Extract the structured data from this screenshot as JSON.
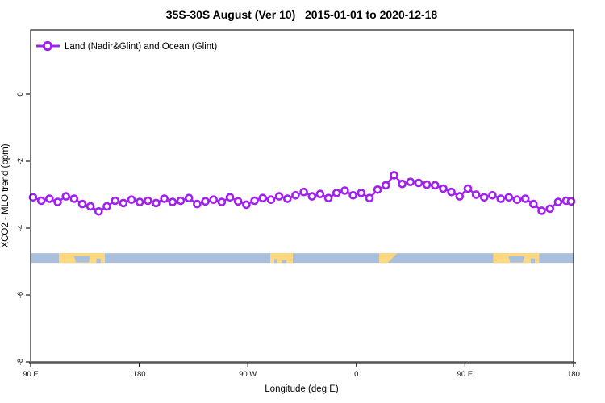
{
  "title": "35S-30S August (Ver 10)   2015-01-01 to 2020-12-18",
  "legend": {
    "label": "Land (Nadir&Glint) and Ocean (Glint)"
  },
  "colors": {
    "series": "#A020F0",
    "marker_fill": "#FFFFFF",
    "ocean": "#A9BFDC",
    "land": "#FDD87E",
    "axis": "#1a1a1a"
  },
  "chart_data": {
    "type": "line",
    "title": "35S-30S August (Ver 10)   2015-01-01 to 2020-12-18",
    "xlabel": "Longitude (deg E)",
    "ylabel": "XCO2 - MLO trend (ppm)",
    "grid": false,
    "legend_position": "topleft",
    "x_axis": {
      "note": "display axis runs 90E eastward wrapping to 180 (450 deg total)",
      "range_display_deg": [
        90,
        540
      ],
      "ticks": [
        {
          "deg": 90,
          "label": "90 E"
        },
        {
          "deg": 180,
          "label": "180"
        },
        {
          "deg": 270,
          "label": "90 W"
        },
        {
          "deg": 360,
          "label": "0"
        },
        {
          "deg": 450,
          "label": "90 E"
        },
        {
          "deg": 540,
          "label": "180"
        }
      ]
    },
    "y_axis": {
      "range": [
        -8.1,
        1.93
      ],
      "ticks": [
        {
          "val": 0,
          "label": "0"
        },
        {
          "val": -2,
          "label": "-2"
        },
        {
          "val": -4,
          "label": "-4"
        },
        {
          "val": -6,
          "label": "-6"
        },
        {
          "val": -8,
          "label": "-8"
        }
      ]
    },
    "series": [
      {
        "name": "Land (Nadir&Glint) and Ocean (Glint)",
        "marker": "open-circle",
        "color": "#A020F0",
        "points": [
          [
            92,
            -3.08
          ],
          [
            98.8,
            -3.18
          ],
          [
            105.6,
            -3.12
          ],
          [
            112.4,
            -3.22
          ],
          [
            119.2,
            -3.05
          ],
          [
            126,
            -3.12
          ],
          [
            132.8,
            -3.28
          ],
          [
            139.6,
            -3.35
          ],
          [
            146.4,
            -3.5
          ],
          [
            153.2,
            -3.35
          ],
          [
            160,
            -3.18
          ],
          [
            166.8,
            -3.25
          ],
          [
            173.6,
            -3.15
          ],
          [
            180.4,
            -3.22
          ],
          [
            187.2,
            -3.18
          ],
          [
            194,
            -3.25
          ],
          [
            200.8,
            -3.12
          ],
          [
            207.6,
            -3.22
          ],
          [
            214.4,
            -3.18
          ],
          [
            221.2,
            -3.1
          ],
          [
            228,
            -3.28
          ],
          [
            234.8,
            -3.2
          ],
          [
            241.6,
            -3.15
          ],
          [
            248.4,
            -3.22
          ],
          [
            255.2,
            -3.08
          ],
          [
            262,
            -3.2
          ],
          [
            268.8,
            -3.3
          ],
          [
            275.6,
            -3.18
          ],
          [
            282.4,
            -3.1
          ],
          [
            289.2,
            -3.15
          ],
          [
            296,
            -3.05
          ],
          [
            302.8,
            -3.12
          ],
          [
            309.6,
            -3.02
          ],
          [
            316.4,
            -2.92
          ],
          [
            323.2,
            -3.05
          ],
          [
            330,
            -2.98
          ],
          [
            336.8,
            -3.1
          ],
          [
            343.6,
            -2.95
          ],
          [
            350.4,
            -2.88
          ],
          [
            357.2,
            -3.02
          ],
          [
            364,
            -2.95
          ],
          [
            370.8,
            -3.1
          ],
          [
            377.6,
            -2.85
          ],
          [
            384.4,
            -2.72
          ],
          [
            391.2,
            -2.42
          ],
          [
            398,
            -2.68
          ],
          [
            404.8,
            -2.62
          ],
          [
            411.6,
            -2.65
          ],
          [
            418.4,
            -2.7
          ],
          [
            425.2,
            -2.72
          ],
          [
            432,
            -2.82
          ],
          [
            438.8,
            -2.92
          ],
          [
            445.6,
            -3.05
          ],
          [
            452.4,
            -2.82
          ],
          [
            459.2,
            -3.0
          ],
          [
            466,
            -3.08
          ],
          [
            472.8,
            -3.02
          ],
          [
            479.6,
            -3.12
          ],
          [
            486.4,
            -3.08
          ],
          [
            493.2,
            -3.15
          ],
          [
            500,
            -3.12
          ],
          [
            506.8,
            -3.28
          ],
          [
            513.6,
            -3.48
          ],
          [
            520.4,
            -3.42
          ],
          [
            527.2,
            -3.22
          ],
          [
            534,
            -3.18
          ],
          [
            538,
            -3.2
          ]
        ]
      }
    ],
    "map_band": {
      "description": "latitude-band coastline strip (ocean with land patches)",
      "ppm_top": -4.75,
      "ppm_bottom": -5.04,
      "ocean_color": "#A9BFDC",
      "land_color": "#FDD87E",
      "patches": [
        {
          "name": "australia",
          "color": "land",
          "poly": [
            [
              113.4,
              0
            ],
            [
              151.5,
              0
            ],
            [
              151.5,
              1
            ],
            [
              113.4,
              1
            ]
          ]
        },
        {
          "name": "great-australian-bight",
          "color": "ocean",
          "poly": [
            [
              126,
              0.3
            ],
            [
              139.5,
              0.3
            ],
            [
              138,
              0.95
            ],
            [
              127.5,
              0.95
            ]
          ]
        },
        {
          "name": "bass-strait-notch",
          "color": "ocean",
          "poly": [
            [
              144.5,
              0.55
            ],
            [
              148,
              0.55
            ],
            [
              148,
              1
            ],
            [
              144.5,
              1
            ]
          ]
        },
        {
          "name": "south-america",
          "color": "land",
          "poly": [
            [
              288.6,
              0
            ],
            [
              307.3,
              0
            ],
            [
              307.3,
              1
            ],
            [
              288.6,
              1
            ]
          ]
        },
        {
          "name": "sa-coast-notch-1",
          "color": "ocean",
          "poly": [
            [
              292,
              0.6
            ],
            [
              294.5,
              0.6
            ],
            [
              294.5,
              1
            ],
            [
              292,
              1
            ]
          ]
        },
        {
          "name": "sa-coast-notch-2",
          "color": "ocean",
          "poly": [
            [
              298,
              0.72
            ],
            [
              302,
              0.72
            ],
            [
              302,
              1
            ],
            [
              298,
              1
            ]
          ]
        },
        {
          "name": "africa-wedge",
          "color": "land",
          "poly": [
            [
              378.9,
              0
            ],
            [
              393.6,
              0
            ],
            [
              386,
              1
            ],
            [
              378.9,
              1
            ]
          ]
        },
        {
          "name": "australia-2",
          "color": "land",
          "poly": [
            [
              473.4,
              0
            ],
            [
              511.5,
              0
            ],
            [
              511.5,
              1
            ],
            [
              473.4,
              1
            ]
          ]
        },
        {
          "name": "great-australian-bight-2",
          "color": "ocean",
          "poly": [
            [
              486,
              0.3
            ],
            [
              499.5,
              0.3
            ],
            [
              498,
              0.95
            ],
            [
              487.5,
              0.95
            ]
          ]
        },
        {
          "name": "bass-strait-notch-2",
          "color": "ocean",
          "poly": [
            [
              504.5,
              0.55
            ],
            [
              508,
              0.55
            ],
            [
              508,
              1
            ],
            [
              504.5,
              1
            ]
          ]
        }
      ]
    }
  }
}
